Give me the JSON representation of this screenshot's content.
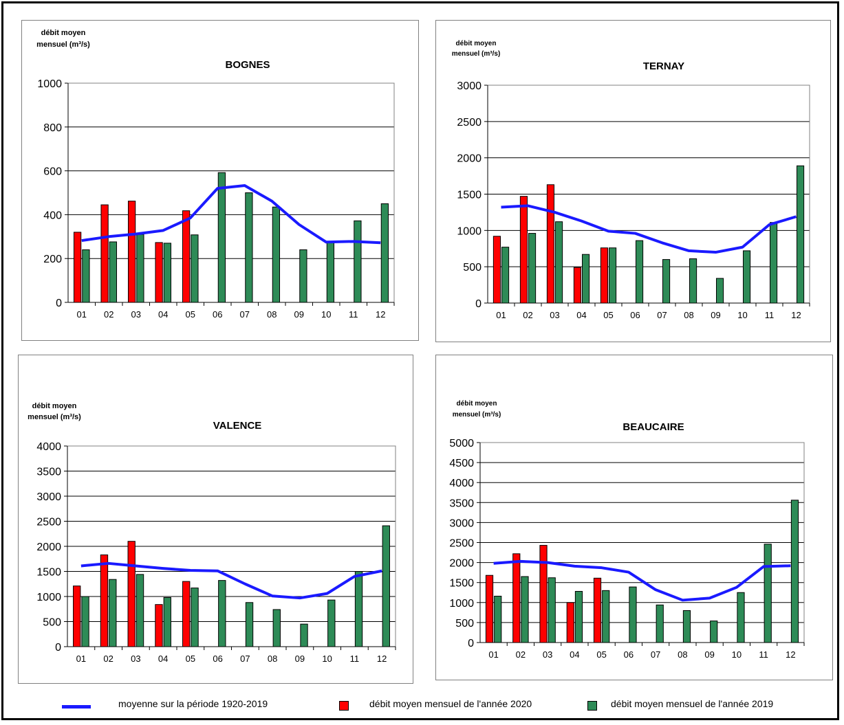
{
  "colors": {
    "mean_line": "#1a1aff",
    "year2020": "#ff0000",
    "year2019": "#2e8b57",
    "grid": "#000000"
  },
  "ylabel_line1": "débit moyen",
  "ylabel_line2": "mensuel (m³/s)",
  "legend": {
    "mean": "moyenne sur la période 1920-2019",
    "y2020": "débit moyen mensuel de l'année 2020",
    "y2019": "débit moyen mensuel de l'année 2019"
  },
  "chart_data": [
    {
      "type": "bar",
      "title": "BOGNES",
      "categories": [
        "01",
        "02",
        "03",
        "04",
        "05",
        "06",
        "07",
        "08",
        "09",
        "10",
        "11",
        "12"
      ],
      "ylim": [
        0,
        1000
      ],
      "yticks": [
        0,
        200,
        400,
        600,
        800,
        1000
      ],
      "series": [
        {
          "name": "débit moyen mensuel de l'année 2020",
          "kind": "bar",
          "values": [
            320,
            445,
            462,
            273,
            418,
            null,
            null,
            null,
            null,
            null,
            null,
            null
          ]
        },
        {
          "name": "débit moyen mensuel de l'année 2019",
          "kind": "bar",
          "values": [
            240,
            276,
            310,
            270,
            308,
            592,
            500,
            435,
            240,
            275,
            372,
            450
          ]
        },
        {
          "name": "moyenne sur la période 1920-2019",
          "kind": "line",
          "values": [
            282,
            300,
            312,
            328,
            385,
            520,
            533,
            462,
            355,
            275,
            278,
            272
          ]
        }
      ]
    },
    {
      "type": "bar",
      "title": "TERNAY",
      "categories": [
        "01",
        "02",
        "03",
        "04",
        "05",
        "06",
        "07",
        "08",
        "09",
        "10",
        "11",
        "12"
      ],
      "ylim": [
        0,
        3000
      ],
      "yticks": [
        0,
        500,
        1000,
        1500,
        2000,
        2500,
        3000
      ],
      "series": [
        {
          "name": "débit moyen mensuel de l'année 2020",
          "kind": "bar",
          "values": [
            920,
            1470,
            1630,
            490,
            760,
            null,
            null,
            null,
            null,
            null,
            null,
            null
          ]
        },
        {
          "name": "débit moyen mensuel de l'année 2019",
          "kind": "bar",
          "values": [
            770,
            960,
            1120,
            670,
            760,
            860,
            600,
            610,
            340,
            720,
            1110,
            1890
          ]
        },
        {
          "name": "moyenne sur la période 1920-2019",
          "kind": "line",
          "values": [
            1320,
            1340,
            1250,
            1130,
            990,
            960,
            830,
            720,
            700,
            770,
            1080,
            1190
          ]
        }
      ]
    },
    {
      "type": "bar",
      "title": "VALENCE",
      "categories": [
        "01",
        "02",
        "03",
        "04",
        "05",
        "06",
        "07",
        "08",
        "09",
        "10",
        "11",
        "12"
      ],
      "ylim": [
        0,
        4000
      ],
      "yticks": [
        0,
        500,
        1000,
        1500,
        2000,
        2500,
        3000,
        3500,
        4000
      ],
      "series": [
        {
          "name": "débit moyen mensuel de l'année 2020",
          "kind": "bar",
          "values": [
            1210,
            1830,
            2100,
            840,
            1300,
            null,
            null,
            null,
            null,
            null,
            null,
            null
          ]
        },
        {
          "name": "débit moyen mensuel de l'année 2019",
          "kind": "bar",
          "values": [
            1000,
            1340,
            1440,
            980,
            1170,
            1320,
            880,
            740,
            450,
            930,
            1500,
            2410
          ]
        },
        {
          "name": "moyenne sur la période 1920-2019",
          "kind": "line",
          "values": [
            1610,
            1660,
            1610,
            1560,
            1520,
            1510,
            1250,
            1010,
            970,
            1060,
            1400,
            1510
          ]
        }
      ]
    },
    {
      "type": "bar",
      "title": "BEAUCAIRE",
      "categories": [
        "01",
        "02",
        "03",
        "04",
        "05",
        "06",
        "07",
        "08",
        "09",
        "10",
        "11",
        "12"
      ],
      "ylim": [
        0,
        5000
      ],
      "yticks": [
        0,
        500,
        1000,
        1500,
        2000,
        2500,
        3000,
        3500,
        4000,
        4500,
        5000
      ],
      "series": [
        {
          "name": "débit moyen mensuel de l'année 2020",
          "kind": "bar",
          "values": [
            1680,
            2220,
            2430,
            1000,
            1610,
            null,
            null,
            null,
            null,
            null,
            null,
            null
          ]
        },
        {
          "name": "débit moyen mensuel de l'année 2019",
          "kind": "bar",
          "values": [
            1160,
            1650,
            1620,
            1280,
            1300,
            1390,
            940,
            800,
            540,
            1250,
            2460,
            3560
          ]
        },
        {
          "name": "moyenne sur la période 1920-2019",
          "kind": "line",
          "values": [
            1980,
            2030,
            2000,
            1910,
            1870,
            1760,
            1320,
            1060,
            1110,
            1380,
            1900,
            1920
          ]
        }
      ]
    }
  ]
}
